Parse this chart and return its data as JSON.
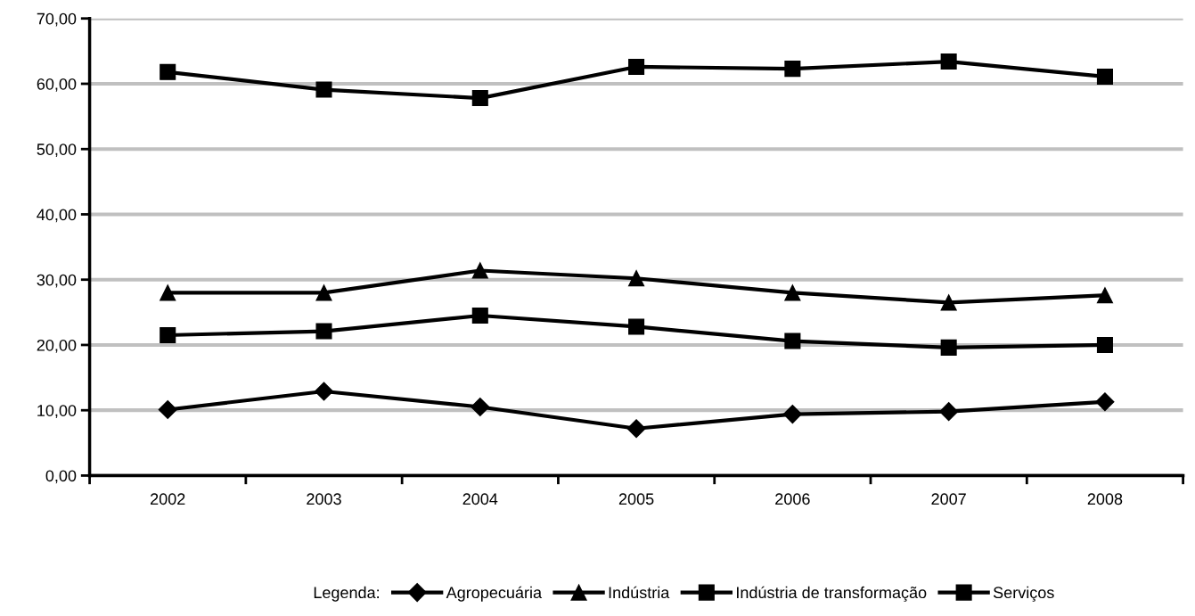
{
  "chart_data": {
    "type": "line",
    "categories": [
      "2002",
      "2003",
      "2004",
      "2005",
      "2006",
      "2007",
      "2008"
    ],
    "series": [
      {
        "name": "Agropecuária",
        "color": "#000000",
        "marker": "diamond",
        "values": [
          10.1,
          12.9,
          10.5,
          7.2,
          9.4,
          9.8,
          11.3
        ]
      },
      {
        "name": "Indústria",
        "color": "#000000",
        "marker": "triangle",
        "values": [
          28.0,
          28.0,
          31.4,
          30.2,
          28.0,
          26.5,
          27.6
        ]
      },
      {
        "name": "Indústria de transformação",
        "color": "#000000",
        "marker": "square",
        "values": [
          21.5,
          22.1,
          24.5,
          22.8,
          20.6,
          19.6,
          20.0
        ]
      },
      {
        "name": "Serviços",
        "color": "#000000",
        "marker": "square",
        "values": [
          61.8,
          59.1,
          57.8,
          62.6,
          62.3,
          63.4,
          61.1
        ]
      }
    ],
    "ylim": [
      0,
      70
    ],
    "yticks": [
      {
        "value": 0,
        "label": "0,00"
      },
      {
        "value": 10,
        "label": "10,00"
      },
      {
        "value": 20,
        "label": "20,00"
      },
      {
        "value": 30,
        "label": "30,00"
      },
      {
        "value": 40,
        "label": "40,00"
      },
      {
        "value": 50,
        "label": "50,00"
      },
      {
        "value": 60,
        "label": "60,00"
      },
      {
        "value": 70,
        "label": "70,00"
      }
    ],
    "grid": "y",
    "legend": "bottom",
    "legend_title": "Legenda:",
    "line_style": "solid"
  }
}
